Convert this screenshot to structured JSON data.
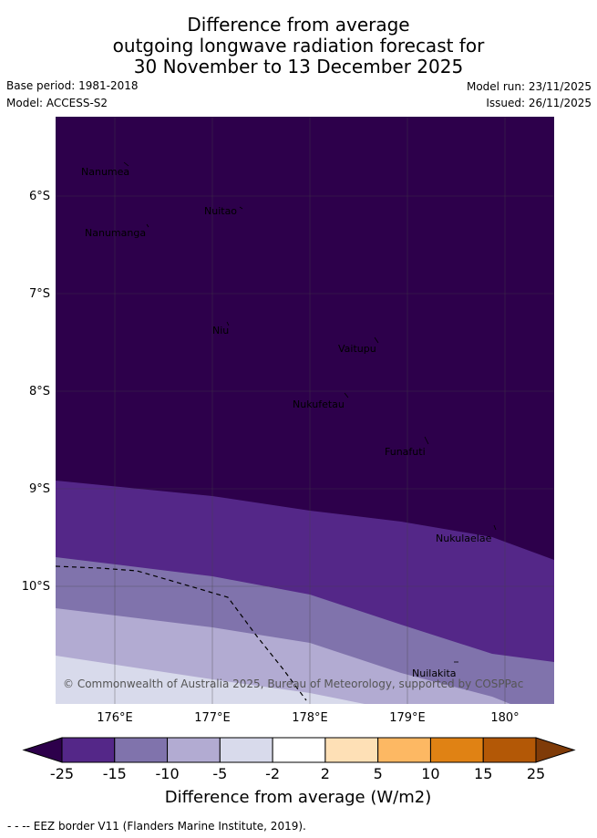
{
  "title": {
    "line1": "Difference from average",
    "line2": "outgoing longwave radiation forecast for",
    "line3": "30 November to 13 December 2025"
  },
  "meta": {
    "base_period": "Base period: 1981-2018",
    "model": "Model: ACCESS-S2",
    "model_run": "Model run: 23/11/2025",
    "issued": "Issued: 26/11/2025"
  },
  "map": {
    "lat_labels": [
      "6°S",
      "7°S",
      "8°S",
      "9°S",
      "10°S"
    ],
    "lon_labels": [
      "176°E",
      "177°E",
      "178°E",
      "179°E",
      "180°"
    ],
    "places": [
      {
        "name": "Nanumea"
      },
      {
        "name": "Nuitao"
      },
      {
        "name": "Nanumanga"
      },
      {
        "name": "Niu"
      },
      {
        "name": "Vaitupu"
      },
      {
        "name": "Nukufetau"
      },
      {
        "name": "Funafuti"
      },
      {
        "name": "Nukulaelae"
      },
      {
        "name": "Nuilakita"
      }
    ],
    "copyright": "© Commonwealth of Australia 2025, Bureau of Meteorology, supported by COSPPac"
  },
  "colorbar": {
    "ticks": [
      "-25",
      "-15",
      "-10",
      "-5",
      "-2",
      "2",
      "5",
      "10",
      "15",
      "25"
    ],
    "label": "Difference from average (W/m2)",
    "colors": {
      "below": "#2d004b",
      "bins": [
        "#542788",
        "#8073ac",
        "#b2abd2",
        "#d8daeb",
        "#ffffff",
        "#fee0b6",
        "#fdb863",
        "#e08214",
        "#b35806"
      ],
      "above": "#7f3b08"
    }
  },
  "legend": {
    "eez": "- -  -- EEZ border V11 (Flanders Marine Institute, 2019)."
  }
}
